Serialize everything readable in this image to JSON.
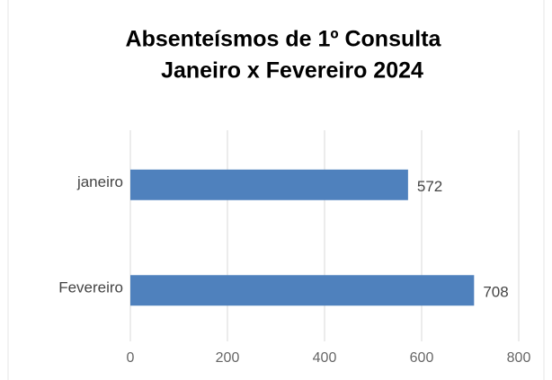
{
  "chart_data": {
    "type": "hbar",
    "title": [
      "Absenteísmos de 1º Consulta",
      "Janeiro x Fevereiro 2024"
    ],
    "categories": [
      "janeiro",
      "Fevereiro"
    ],
    "values": [
      572,
      708
    ],
    "color": "#4f81bd",
    "xlim": [
      0,
      800
    ],
    "xticks": [
      0,
      200,
      400,
      600,
      800
    ],
    "grid": true
  }
}
